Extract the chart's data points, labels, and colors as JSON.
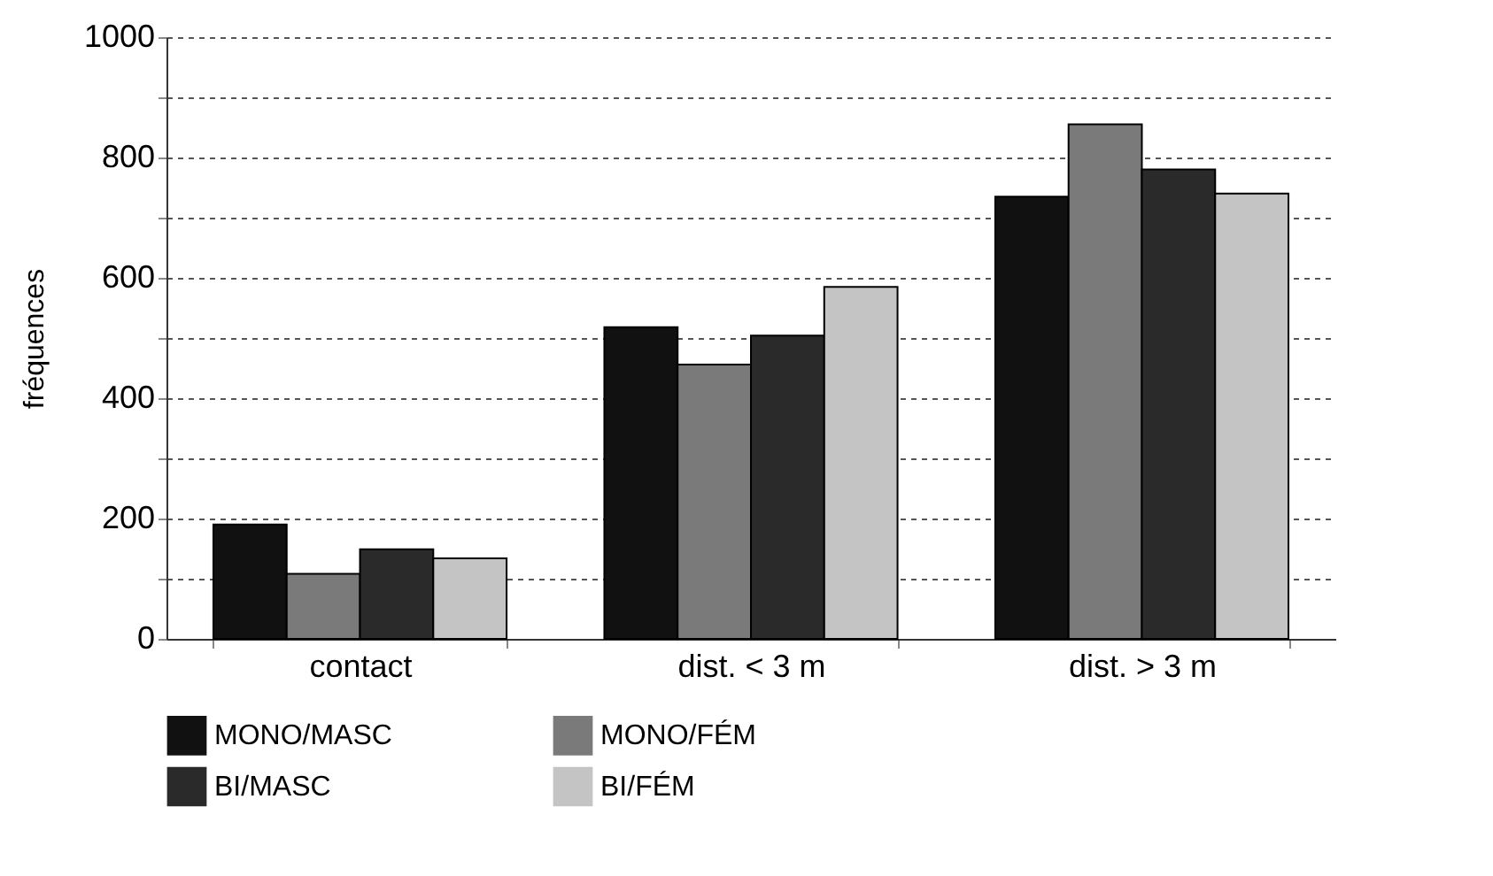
{
  "chart_data": {
    "type": "bar",
    "ylabel": "fréquences",
    "categories": [
      "contact",
      "dist. < 3 m",
      "dist. > 3 m"
    ],
    "series": [
      {
        "name": "MONO/MASC",
        "color": "#111111",
        "values": [
          190,
          518,
          735
        ]
      },
      {
        "name": "MONO/FÉM",
        "color": "#7a7a7a",
        "values": [
          108,
          456,
          855
        ]
      },
      {
        "name": "BI/MASC",
        "color": "#2a2a2a",
        "values": [
          149,
          504,
          780
        ]
      },
      {
        "name": "BI/FÉM",
        "color": "#c4c4c4",
        "values": [
          134,
          585,
          740
        ]
      }
    ],
    "ylim": [
      0,
      1000
    ],
    "yticks": [
      0,
      {
        "value": 100,
        "label": null
      },
      200,
      {
        "value": 300,
        "label": null
      },
      400,
      {
        "value": 500,
        "label": null
      },
      600,
      {
        "value": 700,
        "label": null
      },
      800,
      {
        "value": 900,
        "label": null
      },
      1000
    ],
    "grid": "y",
    "legend": "bottom"
  }
}
